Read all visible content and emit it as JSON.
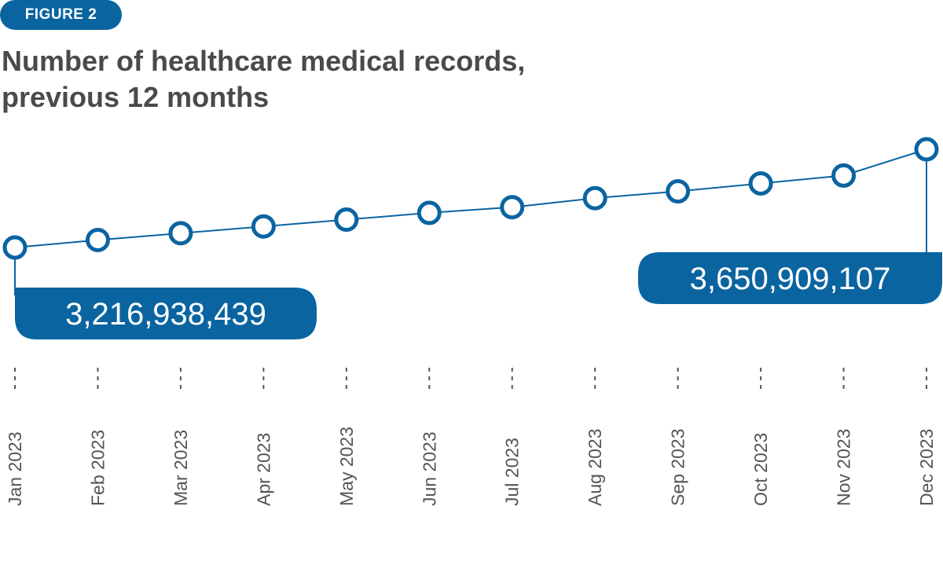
{
  "figure_label": "FIGURE 2",
  "title_line1": "Number of healthcare medical records,",
  "title_line2": "previous 12 months",
  "colors": {
    "accent": "#0a64a0",
    "title": "#4a4a4a",
    "tick": "#555555"
  },
  "chart_data": {
    "type": "line",
    "title": "Number of healthcare medical records, previous 12 months",
    "categories": [
      "Jan 2023",
      "Feb 2023",
      "Mar 2023",
      "Apr 2023",
      "May 2023",
      "Jun 2023",
      "Jul 2023",
      "Aug 2023",
      "Sep 2023",
      "Oct 2023",
      "Nov 2023",
      "Dec 2023"
    ],
    "series": [
      {
        "values": [
          3216938439,
          3250000000,
          3280000000,
          3310000000,
          3340000000,
          3370000000,
          3395000000,
          3435000000,
          3465000000,
          3500000000,
          3535000000,
          3650909107
        ]
      }
    ],
    "annotations": [
      {
        "category": "Jan 2023",
        "label": "3,216,938,439"
      },
      {
        "category": "Dec 2023",
        "label": "3,650,909,107"
      }
    ],
    "xlabel": "",
    "ylabel": "",
    "grid": false,
    "legend": "none"
  }
}
